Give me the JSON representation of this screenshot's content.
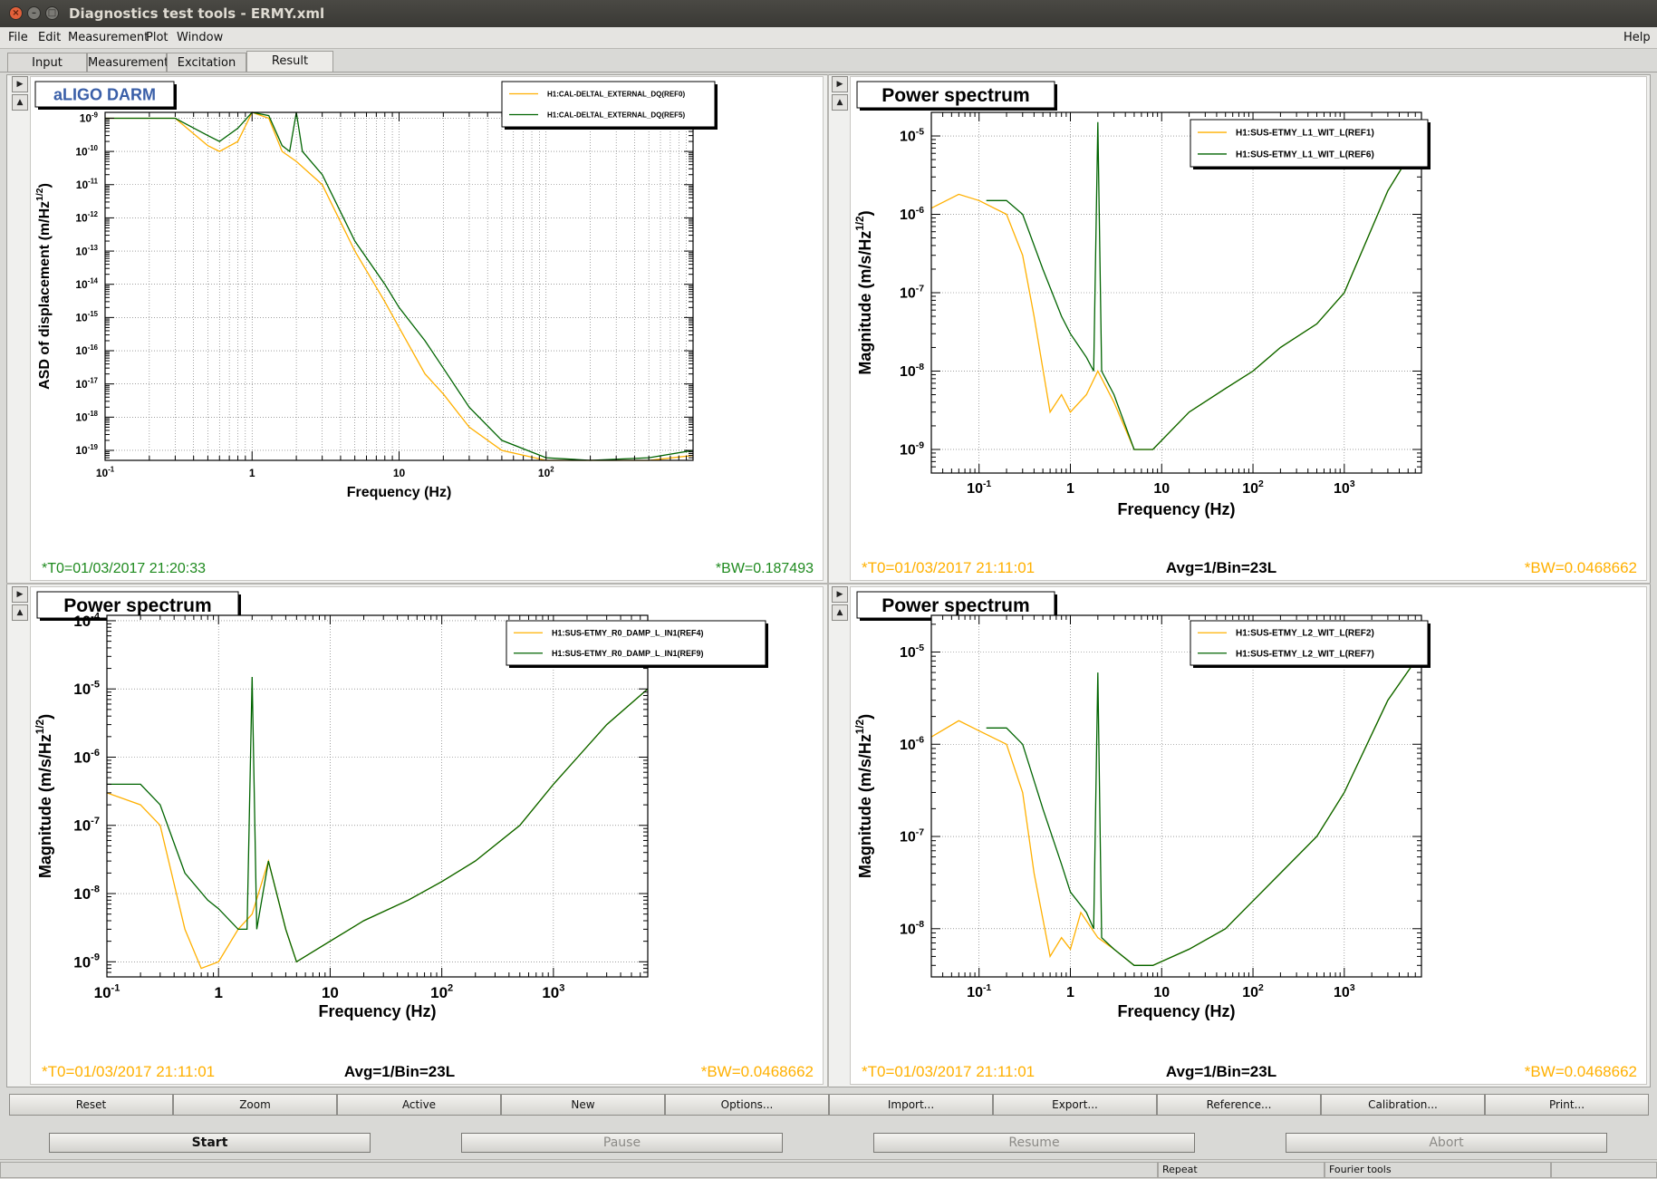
{
  "window": {
    "title": "Diagnostics test tools - ERMY.xml"
  },
  "menu": {
    "file": "File",
    "edit": "Edit",
    "measurement": "Measurement",
    "plot": "Plot",
    "window": "Window",
    "help": "Help"
  },
  "tabs": [
    {
      "label": "Input"
    },
    {
      "label": "Measurement"
    },
    {
      "label": "Excitation"
    },
    {
      "label": "Result",
      "active": true
    }
  ],
  "colors": {
    "orange": "#ffb000",
    "green": "#006400",
    "frame": "#000000"
  },
  "plots": [
    {
      "title": "aLIGO DARM",
      "title_color": "#3a5fa8",
      "ylabel": "ASD of displacement (m/Hz",
      "ylabel_sup": "1/2",
      "ylabel_tail": ")",
      "xlabel": "Frequency (Hz)",
      "legend": [
        "H1:CAL-DELTAL_EXTERNAL_DQ(REF0)",
        "H1:CAL-DELTAL_EXTERNAL_DQ(REF5)"
      ],
      "footer_left": "*T0=01/03/2017 21:20:33",
      "footer_left_color": "#1e8a1e",
      "footer_mid": "",
      "footer_right": "*BW=0.187493",
      "footer_right_color": "#1e8a1e",
      "yticks": [
        "10",
        "10",
        "10",
        "10",
        "10",
        "10",
        "10",
        "10",
        "10",
        "10",
        "10"
      ],
      "yexp": [
        "-9",
        "-10",
        "-11",
        "-12",
        "-13",
        "-14",
        "-15",
        "-16",
        "-17",
        "-18",
        "-19"
      ],
      "xticks": [
        {
          "base": "10",
          "exp": "-1"
        },
        {
          "base": "1",
          "exp": ""
        },
        {
          "base": "10",
          "exp": ""
        },
        {
          "base": "10",
          "exp": "2"
        }
      ]
    },
    {
      "title": "Power spectrum",
      "title_color": "#000000",
      "ylabel": "Magnitude (m/s/Hz",
      "ylabel_sup": "1/2",
      "ylabel_tail": ")",
      "xlabel": "Frequency (Hz)",
      "legend": [
        "H1:SUS-ETMY_L1_WIT_L(REF1)",
        "H1:SUS-ETMY_L1_WIT_L(REF6)"
      ],
      "footer_left": "*T0=01/03/2017 21:11:01",
      "footer_left_color": "#ffb000",
      "footer_mid": "Avg=1/Bin=23L",
      "footer_right": "*BW=0.0468662",
      "footer_right_color": "#ffb000",
      "yticks": [
        "10",
        "10",
        "10",
        "10",
        "10"
      ],
      "yexp": [
        "-5",
        "-6",
        "-7",
        "-8",
        "-9"
      ],
      "xticks": [
        {
          "base": "10",
          "exp": "-1"
        },
        {
          "base": "1",
          "exp": ""
        },
        {
          "base": "10",
          "exp": ""
        },
        {
          "base": "10",
          "exp": "2"
        },
        {
          "base": "10",
          "exp": "3"
        }
      ]
    },
    {
      "title": "Power spectrum",
      "title_color": "#000000",
      "ylabel": "Magnitude (m/s/Hz",
      "ylabel_sup": "1/2",
      "ylabel_tail": ")",
      "xlabel": "Frequency (Hz)",
      "legend": [
        "H1:SUS-ETMY_R0_DAMP_L_IN1(REF4)",
        "H1:SUS-ETMY_R0_DAMP_L_IN1(REF9)"
      ],
      "footer_left": "*T0=01/03/2017 21:11:01",
      "footer_left_color": "#ffb000",
      "footer_mid": "Avg=1/Bin=23L",
      "footer_right": "*BW=0.0468662",
      "footer_right_color": "#ffb000",
      "yticks": [
        "10",
        "10",
        "10",
        "10",
        "10",
        "10"
      ],
      "yexp": [
        "-4",
        "-5",
        "-6",
        "-7",
        "-8",
        "-9"
      ],
      "xticks": [
        {
          "base": "10",
          "exp": "-1"
        },
        {
          "base": "1",
          "exp": ""
        },
        {
          "base": "10",
          "exp": ""
        },
        {
          "base": "10",
          "exp": "2"
        },
        {
          "base": "10",
          "exp": "3"
        }
      ]
    },
    {
      "title": "Power spectrum",
      "title_color": "#000000",
      "ylabel": "Magnitude (m/s/Hz",
      "ylabel_sup": "1/2",
      "ylabel_tail": ")",
      "xlabel": "Frequency (Hz)",
      "legend": [
        "H1:SUS-ETMY_L2_WIT_L(REF2)",
        "H1:SUS-ETMY_L2_WIT_L(REF7)"
      ],
      "footer_left": "*T0=01/03/2017 21:11:01",
      "footer_left_color": "#ffb000",
      "footer_mid": "Avg=1/Bin=23L",
      "footer_right": "*BW=0.0468662",
      "footer_right_color": "#ffb000",
      "yticks": [
        "10",
        "10",
        "10",
        "10"
      ],
      "yexp": [
        "-5",
        "-6",
        "-7",
        "-8"
      ],
      "xticks": [
        {
          "base": "10",
          "exp": "-1"
        },
        {
          "base": "1",
          "exp": ""
        },
        {
          "base": "10",
          "exp": ""
        },
        {
          "base": "10",
          "exp": "2"
        },
        {
          "base": "10",
          "exp": "3"
        }
      ]
    }
  ],
  "chart_data": [
    {
      "type": "line",
      "title": "aLIGO DARM",
      "xlabel": "Frequency (Hz)",
      "ylabel": "ASD of displacement (m/Hz^1/2)",
      "xscale": "log",
      "yscale": "log",
      "xlim": [
        0.1,
        1000
      ],
      "ylim": [
        5e-20,
        1.5e-09
      ],
      "grid": true,
      "legend_position": "top-right",
      "series": [
        {
          "name": "H1:CAL-DELTAL_EXTERNAL_DQ(REF0)",
          "color": "#ffb000",
          "x": [
            0.1,
            0.2,
            0.3,
            0.5,
            0.6,
            0.8,
            1.0,
            1.3,
            1.6,
            2.0,
            3.0,
            5.0,
            8.0,
            10,
            15,
            20,
            30,
            50,
            100,
            200,
            500,
            1000
          ],
          "y": [
            1e-09,
            1e-09,
            1e-09,
            1.5e-10,
            1e-10,
            2e-10,
            2e-09,
            1e-09,
            1e-10,
            5e-11,
            1e-11,
            1e-13,
            3e-15,
            5e-16,
            2e-17,
            5e-18,
            5e-19,
            1e-19,
            5e-20,
            5e-20,
            5e-20,
            7e-20
          ]
        },
        {
          "name": "H1:CAL-DELTAL_EXTERNAL_DQ(REF5)",
          "color": "#006400",
          "x": [
            0.1,
            0.2,
            0.3,
            0.5,
            0.6,
            0.8,
            1.0,
            1.3,
            1.6,
            1.8,
            2.0,
            2.2,
            3.0,
            5.0,
            8.0,
            10,
            15,
            20,
            30,
            50,
            100,
            200,
            500,
            1000
          ],
          "y": [
            1e-09,
            1e-09,
            1e-09,
            3e-10,
            2e-10,
            5e-10,
            2e-09,
            1.2e-09,
            1.5e-10,
            1e-10,
            2e-09,
            1e-10,
            2e-11,
            2e-13,
            1e-14,
            2e-15,
            2e-16,
            3e-17,
            2e-18,
            2e-19,
            6e-20,
            5e-20,
            6e-20,
            1e-19
          ]
        }
      ]
    },
    {
      "type": "line",
      "title": "Power spectrum",
      "xlabel": "Frequency (Hz)",
      "ylabel": "Magnitude (m/s/Hz^1/2)",
      "xscale": "log",
      "yscale": "log",
      "xlim": [
        0.03,
        7000
      ],
      "ylim": [
        5e-10,
        2e-05
      ],
      "grid": true,
      "legend_position": "top-right",
      "series": [
        {
          "name": "H1:SUS-ETMY_L1_WIT_L(REF1)",
          "color": "#ffb000",
          "x": [
            0.03,
            0.06,
            0.1,
            0.2,
            0.3,
            0.4,
            0.6,
            0.8,
            1.0,
            1.5,
            2.0,
            3.0,
            5.0,
            8.0,
            20,
            50,
            100,
            200,
            500,
            1000,
            3000,
            7000
          ],
          "y": [
            1.2e-06,
            1.8e-06,
            1.5e-06,
            1e-06,
            3e-07,
            5e-08,
            3e-09,
            5e-09,
            3e-09,
            5e-09,
            1e-08,
            4e-09,
            1e-09,
            1e-09,
            3e-09,
            6e-09,
            1e-08,
            2e-08,
            4e-08,
            1e-07,
            2e-06,
            1e-05
          ]
        },
        {
          "name": "H1:SUS-ETMY_L1_WIT_L(REF6)",
          "color": "#006400",
          "x": [
            0.12,
            0.2,
            0.3,
            0.5,
            0.8,
            1.0,
            1.5,
            1.8,
            2.0,
            2.2,
            3.0,
            5.0,
            8.0,
            20,
            50,
            100,
            200,
            500,
            1000,
            3000,
            7000
          ],
          "y": [
            1.5e-06,
            1.5e-06,
            1e-06,
            2e-07,
            5e-08,
            3e-08,
            1.5e-08,
            1e-08,
            1.5e-05,
            1e-08,
            5e-09,
            1e-09,
            1e-09,
            3e-09,
            6e-09,
            1e-08,
            2e-08,
            4e-08,
            1e-07,
            2e-06,
            1e-05
          ]
        }
      ]
    },
    {
      "type": "line",
      "title": "Power spectrum",
      "xlabel": "Frequency (Hz)",
      "ylabel": "Magnitude (m/s/Hz^1/2)",
      "xscale": "log",
      "yscale": "log",
      "xlim": [
        0.1,
        7000
      ],
      "ylim": [
        6e-10,
        0.00012
      ],
      "grid": true,
      "legend_position": "top-right",
      "series": [
        {
          "name": "H1:SUS-ETMY_R0_DAMP_L_IN1(REF4)",
          "color": "#ffb000",
          "x": [
            0.1,
            0.2,
            0.3,
            0.5,
            0.7,
            1.0,
            1.5,
            2.0,
            2.8,
            4.0,
            5.0,
            10,
            20,
            50,
            100,
            200,
            500,
            1000,
            3000,
            7000
          ],
          "y": [
            3e-07,
            2e-07,
            1e-07,
            3e-09,
            8e-10,
            1e-09,
            3e-09,
            5e-09,
            3e-08,
            3e-09,
            1e-09,
            2e-09,
            4e-09,
            8e-09,
            1.5e-08,
            3e-08,
            1e-07,
            4e-07,
            3e-06,
            1e-05
          ]
        },
        {
          "name": "H1:SUS-ETMY_R0_DAMP_L_IN1(REF9)",
          "color": "#006400",
          "x": [
            0.1,
            0.2,
            0.3,
            0.5,
            0.8,
            1.0,
            1.5,
            1.8,
            2.0,
            2.2,
            2.8,
            4.0,
            5.0,
            10,
            20,
            50,
            100,
            200,
            500,
            1000,
            3000,
            7000
          ],
          "y": [
            4e-07,
            4e-07,
            2e-07,
            2e-08,
            8e-09,
            6e-09,
            3e-09,
            3e-09,
            1.5e-05,
            3e-09,
            3e-08,
            3e-09,
            1e-09,
            2e-09,
            4e-09,
            8e-09,
            1.5e-08,
            3e-08,
            1e-07,
            4e-07,
            3e-06,
            1e-05
          ]
        }
      ]
    },
    {
      "type": "line",
      "title": "Power spectrum",
      "xlabel": "Frequency (Hz)",
      "ylabel": "Magnitude (m/s/Hz^1/2)",
      "xscale": "log",
      "yscale": "log",
      "xlim": [
        0.03,
        7000
      ],
      "ylim": [
        3e-09,
        2.5e-05
      ],
      "grid": true,
      "legend_position": "top-right",
      "series": [
        {
          "name": "H1:SUS-ETMY_L2_WIT_L(REF2)",
          "color": "#ffb000",
          "x": [
            0.03,
            0.06,
            0.1,
            0.2,
            0.3,
            0.4,
            0.6,
            0.8,
            1.0,
            1.3,
            2.0,
            3.0,
            5.0,
            8.0,
            20,
            50,
            100,
            200,
            500,
            1000,
            3000,
            7000
          ],
          "y": [
            1.2e-06,
            1.8e-06,
            1.4e-06,
            1e-06,
            3e-07,
            4e-08,
            5e-09,
            8e-09,
            6e-09,
            1.5e-08,
            8e-09,
            6e-09,
            4e-09,
            4e-09,
            6e-09,
            1e-08,
            2e-08,
            4e-08,
            1e-07,
            3e-07,
            3e-06,
            1e-05
          ]
        },
        {
          "name": "H1:SUS-ETMY_L2_WIT_L(REF7)",
          "color": "#006400",
          "x": [
            0.12,
            0.2,
            0.3,
            0.5,
            0.8,
            1.0,
            1.5,
            1.8,
            2.0,
            2.2,
            3.0,
            5.0,
            8.0,
            20,
            50,
            100,
            200,
            500,
            1000,
            3000,
            7000
          ],
          "y": [
            1.5e-06,
            1.5e-06,
            1e-06,
            2e-07,
            5e-08,
            2.5e-08,
            1.5e-08,
            1e-08,
            6e-06,
            8e-09,
            6e-09,
            4e-09,
            4e-09,
            6e-09,
            1e-08,
            2e-08,
            4e-08,
            1e-07,
            3e-07,
            3e-06,
            1e-05
          ]
        }
      ]
    }
  ],
  "toolbar": [
    "Reset",
    "Zoom",
    "Active",
    "New",
    "Options...",
    "Import...",
    "Export...",
    "Reference...",
    "Calibration...",
    "Print..."
  ],
  "actions": [
    {
      "label": "Start",
      "enabled": true
    },
    {
      "label": "Pause",
      "enabled": false
    },
    {
      "label": "Resume",
      "enabled": false
    },
    {
      "label": "Abort",
      "enabled": false
    }
  ],
  "status": {
    "repeat": "Repeat",
    "tools": "Fourier tools"
  }
}
